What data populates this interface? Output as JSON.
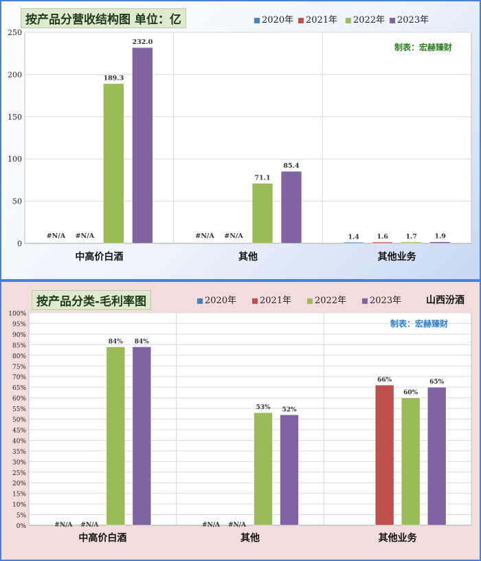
{
  "colors": {
    "2020年": "#4a7fc1",
    "2021年": "#c0504d",
    "2022年": "#9bbb59",
    "2023年": "#8064a2"
  },
  "chart_data": [
    {
      "type": "bar",
      "title": "按产品分营收结构图 单位：亿",
      "credit": "制表：宏赫臻财",
      "categories": [
        "中高价白酒",
        "其他",
        "其他业务"
      ],
      "legend": [
        "2020年",
        "2021年",
        "2022年",
        "2023年"
      ],
      "legend_position": "top-right",
      "series": [
        {
          "name": "2020年",
          "values": [
            null,
            null,
            1.4
          ],
          "labels": [
            "#N/A",
            "#N/A",
            "1.4"
          ]
        },
        {
          "name": "2021年",
          "values": [
            null,
            null,
            1.6
          ],
          "labels": [
            "#N/A",
            "#N/A",
            "1.6"
          ]
        },
        {
          "name": "2022年",
          "values": [
            189.3,
            71.1,
            1.7
          ],
          "labels": [
            "189.3",
            "71.1",
            "1.7"
          ]
        },
        {
          "name": "2023年",
          "values": [
            232.0,
            85.4,
            1.9
          ],
          "labels": [
            "232.0",
            "85.4",
            "1.9"
          ]
        }
      ],
      "ylim": [
        0,
        250
      ],
      "yticks": [
        "0",
        "50",
        "100",
        "150",
        "200",
        "250"
      ],
      "grid": true
    },
    {
      "type": "bar",
      "title": "按产品分类-毛利率图",
      "company": "山西汾酒",
      "credit": "制表：宏赫臻财",
      "categories": [
        "中高价白酒",
        "其他",
        "其他业务"
      ],
      "legend": [
        "2020年",
        "2021年",
        "2022年",
        "2023年"
      ],
      "legend_position": "top-right",
      "series": [
        {
          "name": "2020年",
          "values": [
            null,
            null,
            null
          ],
          "labels": [
            "#N/A",
            "#N/A",
            ""
          ]
        },
        {
          "name": "2021年",
          "values": [
            null,
            null,
            66
          ],
          "labels": [
            "#N/A",
            "#N/A",
            "66%"
          ]
        },
        {
          "name": "2022年",
          "values": [
            84,
            53,
            60
          ],
          "labels": [
            "84%",
            "53%",
            "60%"
          ]
        },
        {
          "name": "2023年",
          "values": [
            84,
            52,
            65
          ],
          "labels": [
            "84%",
            "52%",
            "65%"
          ]
        }
      ],
      "ylim": [
        0,
        100
      ],
      "yticks": [
        "0%",
        "5%",
        "10%",
        "15%",
        "20%",
        "25%",
        "30%",
        "35%",
        "40%",
        "45%",
        "50%",
        "55%",
        "60%",
        "65%",
        "70%",
        "75%",
        "80%",
        "85%",
        "90%",
        "95%",
        "100%"
      ],
      "grid": true
    }
  ]
}
